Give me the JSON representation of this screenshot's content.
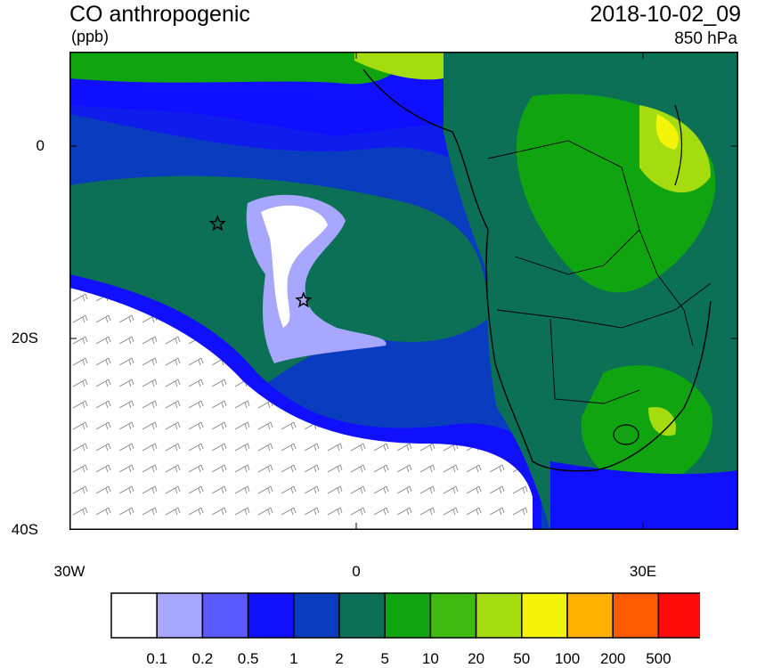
{
  "header": {
    "title": "CO anthropogenic",
    "units": "(ppb)",
    "datetime": "2018-10-02_09",
    "level": "850 hPa"
  },
  "axes": {
    "y_labels": [
      "0",
      "20S",
      "40S"
    ],
    "x_labels": [
      "30W",
      "0",
      "30E"
    ]
  },
  "markers": [
    {
      "name": "star-marker-north",
      "lon": -14.5,
      "lat": -8
    },
    {
      "name": "star-marker-south",
      "lon": -5.5,
      "lat": -16
    }
  ],
  "colorbar": {
    "labels": [
      "0.1",
      "0.2",
      "0.5",
      "1",
      "2",
      "5",
      "10",
      "20",
      "50",
      "100",
      "200",
      "500"
    ],
    "colors": [
      "#ffffff",
      "#a7a7ff",
      "#5a5aff",
      "#1010ff",
      "#0a3cc0",
      "#0b7056",
      "#10a510",
      "#3eba10",
      "#a5dc10",
      "#f4f40a",
      "#ffb000",
      "#ff5a00",
      "#ff0a0a"
    ]
  },
  "colors": {
    "ocean_low": "#ffffff",
    "ocean_mid": "#0a3cc0",
    "land_main": "#0b7056",
    "land_high": "#10a510"
  }
}
